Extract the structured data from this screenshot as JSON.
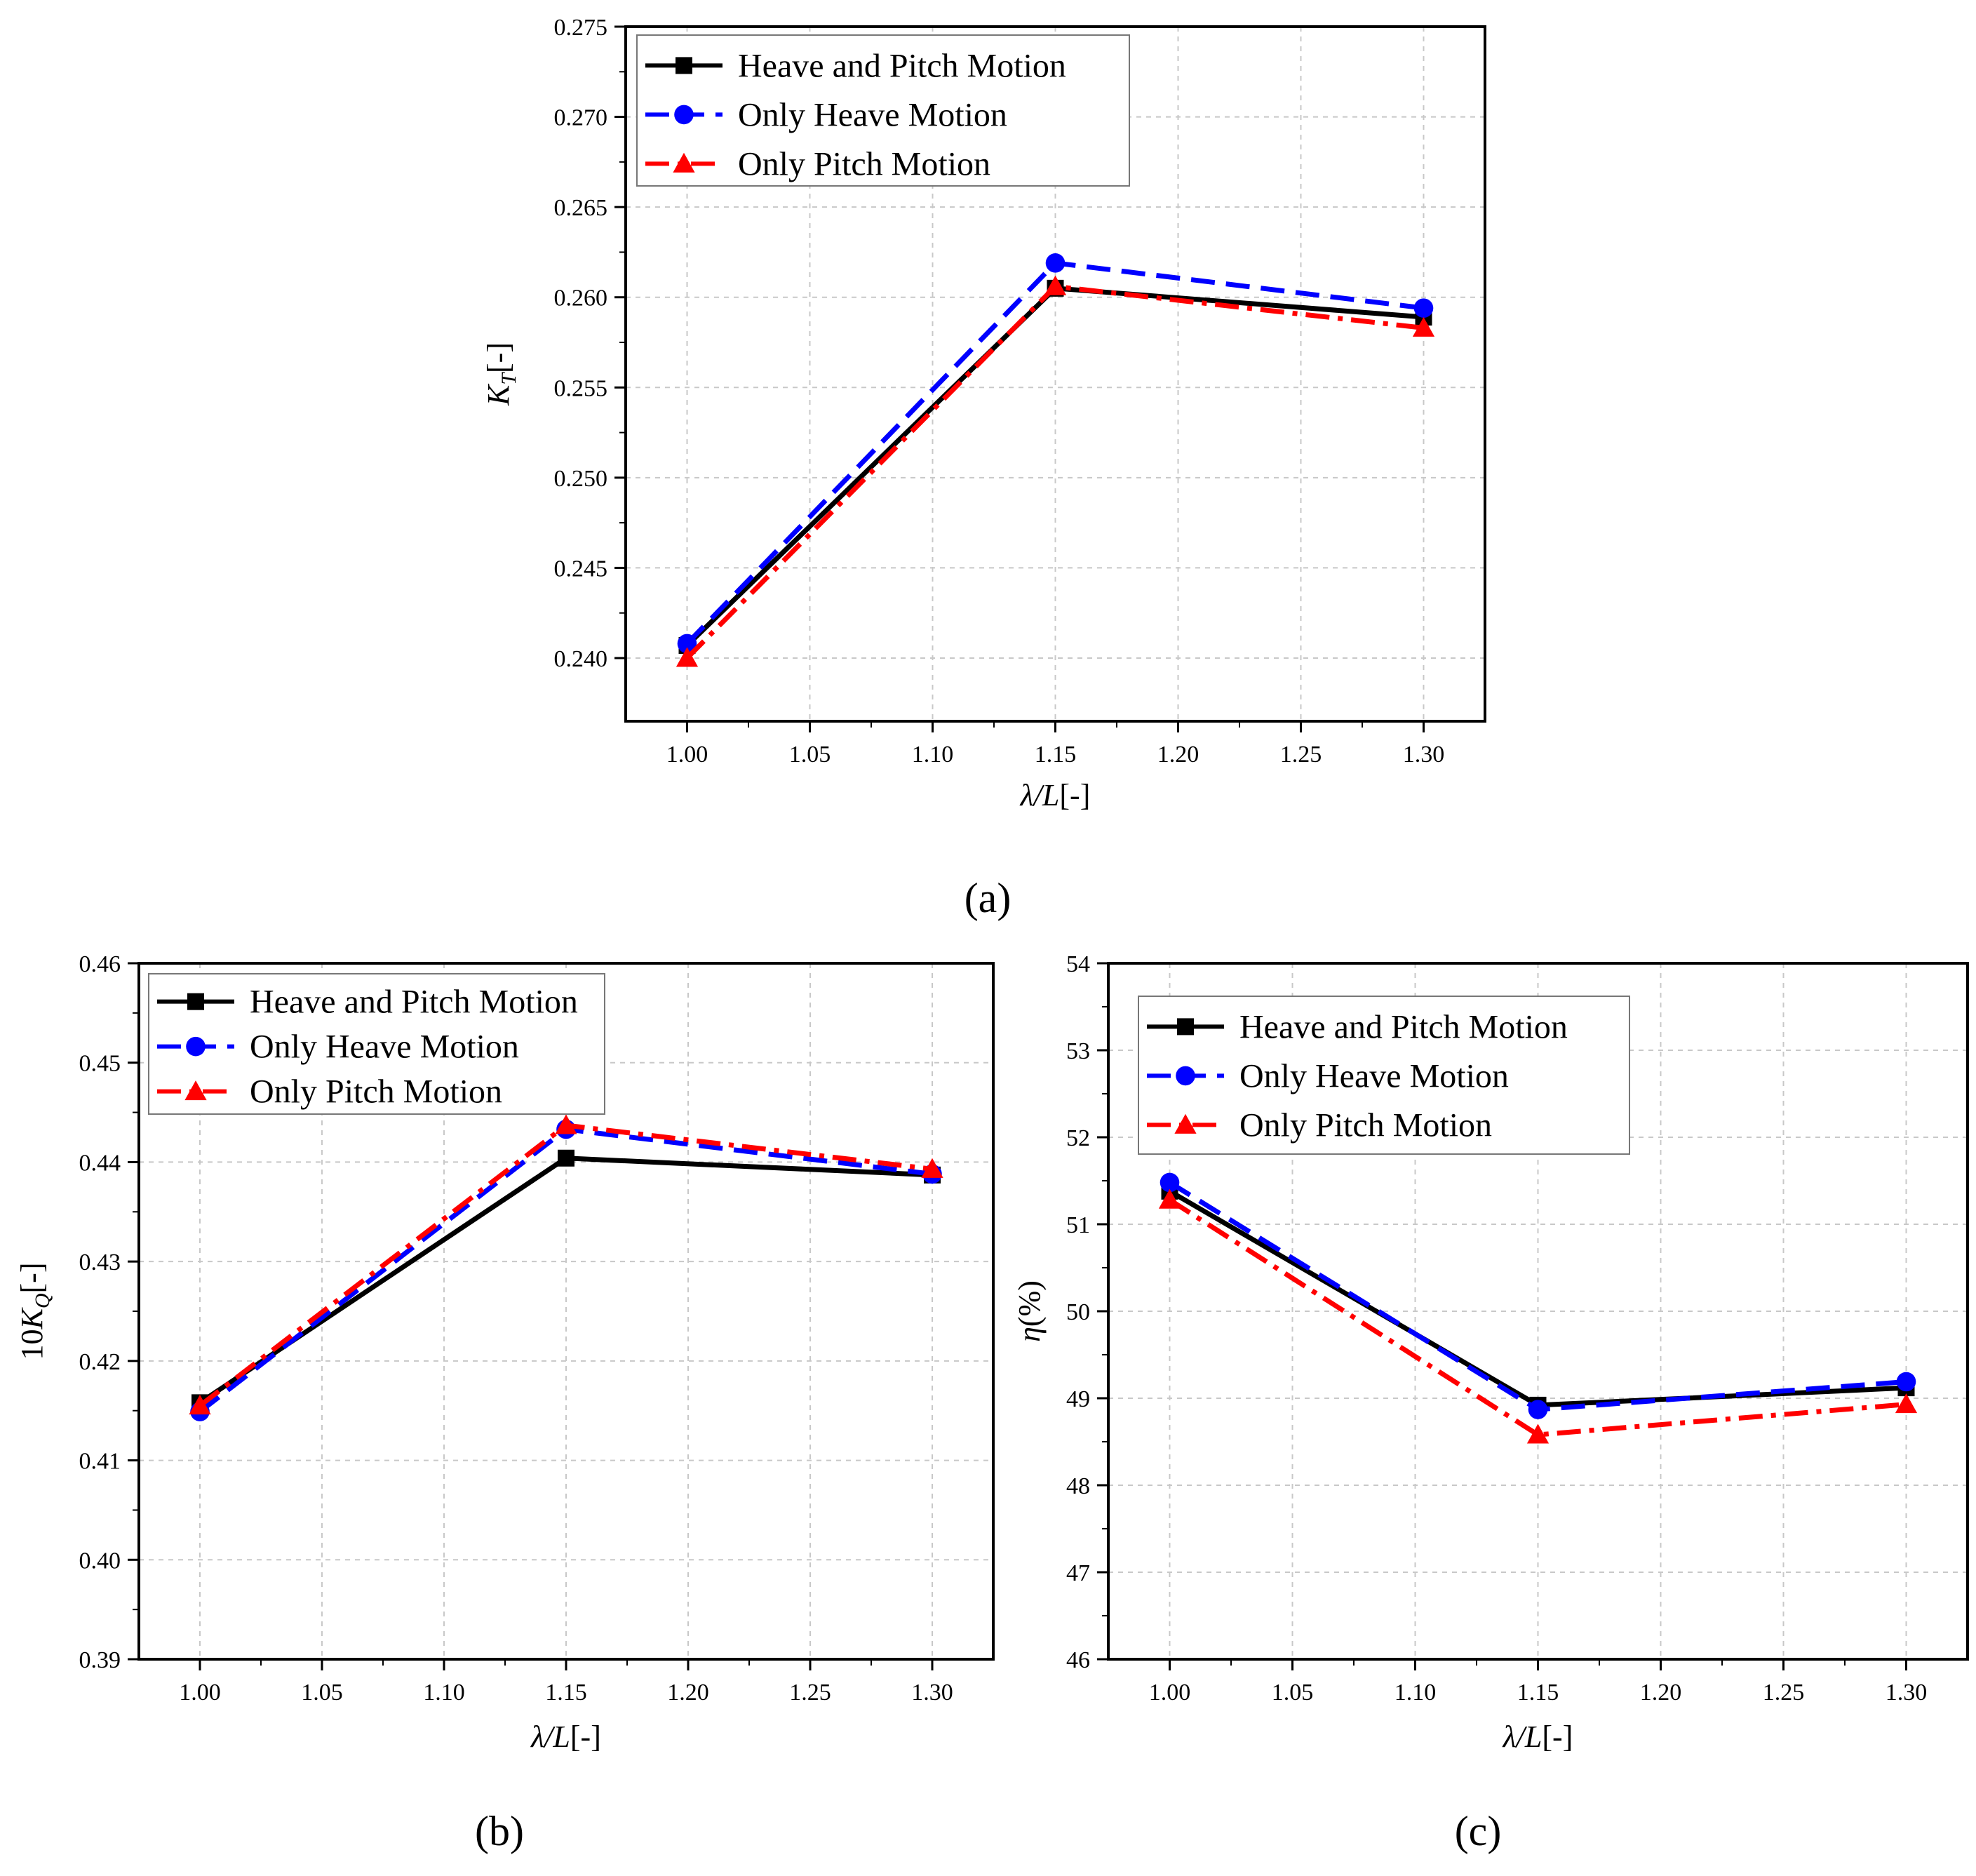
{
  "figure_labels": [
    "(a)",
    "(b)",
    "(c)"
  ],
  "chart_data": [
    {
      "type": "line",
      "panel": "(a)",
      "xlabel": "λ/L[-]",
      "ylabel_main": "K",
      "ylabel_sub": "T",
      "ylabel_suffix": "[-]",
      "xlim": [
        0.975,
        1.325
      ],
      "ylim": [
        0.2365,
        0.275
      ],
      "x_ticks": [
        1.0,
        1.05,
        1.1,
        1.15,
        1.2,
        1.25,
        1.3
      ],
      "x_tick_labels": [
        "1.00",
        "1.05",
        "1.10",
        "1.15",
        "1.20",
        "1.25",
        "1.30"
      ],
      "y_ticks": [
        0.24,
        0.245,
        0.25,
        0.255,
        0.26,
        0.265,
        0.27,
        0.275
      ],
      "y_tick_labels": [
        "0.240",
        "0.245",
        "0.250",
        "0.255",
        "0.260",
        "0.265",
        "0.270",
        "0.275"
      ],
      "grid": true,
      "legend_position": "top-left",
      "x": [
        1.0,
        1.15,
        1.3
      ],
      "series": [
        {
          "name": "Heave and Pitch Motion",
          "values": [
            0.2407,
            0.2605,
            0.2589
          ],
          "color": "#000000",
          "marker": "square",
          "dash": "solid"
        },
        {
          "name": "Only Heave Motion",
          "values": [
            0.2408,
            0.2619,
            0.2594
          ],
          "color": "#0000ff",
          "marker": "circle",
          "dash": "dash"
        },
        {
          "name": "Only Pitch Motion",
          "values": [
            0.24,
            0.2606,
            0.2583
          ],
          "color": "#ff0000",
          "marker": "triangle",
          "dash": "dashdot"
        }
      ]
    },
    {
      "type": "line",
      "panel": "(b)",
      "xlabel": "λ/L[-]",
      "ylabel_main": "10K",
      "ylabel_sub": "Q",
      "ylabel_suffix": "[-]",
      "xlim": [
        0.975,
        1.325
      ],
      "ylim": [
        0.39,
        0.46
      ],
      "x_ticks": [
        1.0,
        1.05,
        1.1,
        1.15,
        1.2,
        1.25,
        1.3
      ],
      "x_tick_labels": [
        "1.00",
        "1.05",
        "1.10",
        "1.15",
        "1.20",
        "1.25",
        "1.30"
      ],
      "y_ticks": [
        0.39,
        0.4,
        0.41,
        0.42,
        0.43,
        0.44,
        0.45,
        0.46
      ],
      "y_tick_labels": [
        "0.39",
        "0.40",
        "0.41",
        "0.42",
        "0.43",
        "0.44",
        "0.45",
        "0.46"
      ],
      "grid": true,
      "legend_position": "top-left",
      "x": [
        1.0,
        1.15,
        1.3
      ],
      "series": [
        {
          "name": "Heave and Pitch Motion",
          "values": [
            0.4158,
            0.4404,
            0.4387
          ],
          "color": "#000000",
          "marker": "square",
          "dash": "solid"
        },
        {
          "name": "Only Heave Motion",
          "values": [
            0.4149,
            0.4433,
            0.4388
          ],
          "color": "#0000ff",
          "marker": "circle",
          "dash": "dash"
        },
        {
          "name": "Only Pitch Motion",
          "values": [
            0.4155,
            0.4437,
            0.4393
          ],
          "color": "#ff0000",
          "marker": "triangle",
          "dash": "dashdot"
        }
      ]
    },
    {
      "type": "line",
      "panel": "(c)",
      "xlabel": "λ/L[-]",
      "ylabel_main": "η(%)",
      "ylabel_sub": "",
      "ylabel_suffix": "",
      "xlim": [
        0.975,
        1.325
      ],
      "ylim": [
        46,
        54
      ],
      "x_ticks": [
        1.0,
        1.05,
        1.1,
        1.15,
        1.2,
        1.25,
        1.3
      ],
      "x_tick_labels": [
        "1.00",
        "1.05",
        "1.10",
        "1.15",
        "1.20",
        "1.25",
        "1.30"
      ],
      "y_ticks": [
        46,
        47,
        48,
        49,
        50,
        51,
        52,
        53,
        54
      ],
      "y_tick_labels": [
        "46",
        "47",
        "48",
        "49",
        "50",
        "51",
        "52",
        "53",
        "54"
      ],
      "grid": true,
      "legend_position": "top-left",
      "x": [
        1.0,
        1.15,
        1.3
      ],
      "series": [
        {
          "name": "Heave and Pitch Motion",
          "values": [
            51.38,
            48.92,
            49.12
          ],
          "color": "#000000",
          "marker": "square",
          "dash": "solid"
        },
        {
          "name": "Only Heave Motion",
          "values": [
            51.48,
            48.87,
            49.19
          ],
          "color": "#0000ff",
          "marker": "circle",
          "dash": "dash"
        },
        {
          "name": "Only Pitch Motion",
          "values": [
            51.28,
            48.58,
            48.93
          ],
          "color": "#ff0000",
          "marker": "triangle",
          "dash": "dashdot"
        }
      ]
    }
  ]
}
